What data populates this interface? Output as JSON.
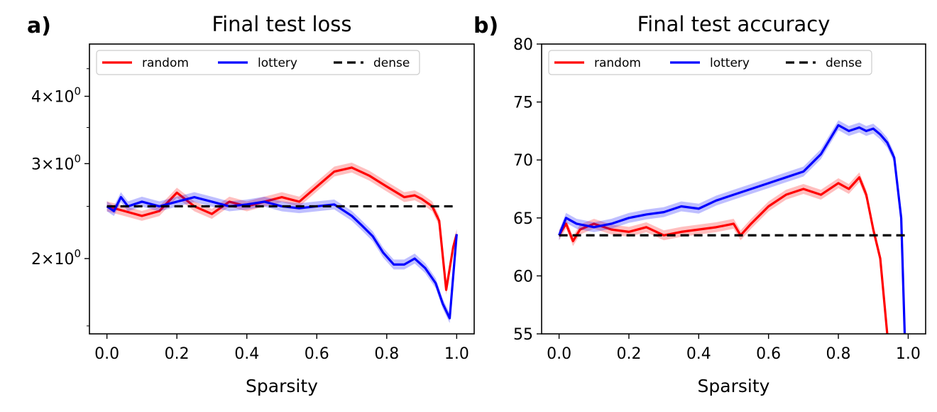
{
  "colors": {
    "random": "#ff0000",
    "lottery": "#0000ff",
    "dense": "#000000"
  },
  "chart_data": [
    {
      "panel_label": "a)",
      "type": "line",
      "title": "Final test loss",
      "xlabel": "Sparsity",
      "ylabel": "",
      "yscale": "log",
      "xlim": [
        -0.05,
        1.05
      ],
      "ylim": [
        1.45,
        5.0
      ],
      "xticks": [
        "0.0",
        "0.2",
        "0.4",
        "0.6",
        "0.8",
        "1.0"
      ],
      "yticks": [
        {
          "value": 2,
          "base": "2",
          "sup": "0"
        },
        {
          "value": 3,
          "base": "3",
          "sup": "0"
        },
        {
          "value": 4,
          "base": "4",
          "sup": "0"
        }
      ],
      "legend": {
        "position": "top-left",
        "ncol": 3,
        "entries": [
          "random",
          "lottery",
          "dense"
        ]
      },
      "series": [
        {
          "name": "random",
          "color_key": "random",
          "shaded": true,
          "x": [
            0,
            0.05,
            0.1,
            0.15,
            0.2,
            0.25,
            0.3,
            0.35,
            0.4,
            0.45,
            0.5,
            0.55,
            0.6,
            0.65,
            0.7,
            0.75,
            0.8,
            0.85,
            0.88,
            0.9,
            0.93,
            0.95,
            0.97,
            0.99,
            1.0
          ],
          "y": [
            2.5,
            2.45,
            2.4,
            2.45,
            2.65,
            2.5,
            2.42,
            2.55,
            2.5,
            2.55,
            2.6,
            2.55,
            2.72,
            2.9,
            2.95,
            2.85,
            2.72,
            2.6,
            2.62,
            2.58,
            2.5,
            2.35,
            1.75,
            2.1,
            2.22
          ]
        },
        {
          "name": "lottery",
          "color_key": "lottery",
          "shaded": true,
          "x": [
            0,
            0.02,
            0.04,
            0.06,
            0.1,
            0.15,
            0.2,
            0.25,
            0.3,
            0.35,
            0.4,
            0.45,
            0.5,
            0.55,
            0.6,
            0.65,
            0.7,
            0.73,
            0.76,
            0.79,
            0.82,
            0.85,
            0.88,
            0.91,
            0.94,
            0.96,
            0.98,
            1.0
          ],
          "y": [
            2.5,
            2.45,
            2.6,
            2.5,
            2.55,
            2.5,
            2.55,
            2.6,
            2.55,
            2.5,
            2.52,
            2.55,
            2.5,
            2.48,
            2.5,
            2.52,
            2.4,
            2.3,
            2.2,
            2.05,
            1.95,
            1.95,
            2.0,
            1.92,
            1.8,
            1.65,
            1.55,
            2.22
          ]
        },
        {
          "name": "dense",
          "color_key": "dense",
          "dashed": true,
          "x": [
            0,
            1.0
          ],
          "y": [
            2.5,
            2.5
          ]
        }
      ]
    },
    {
      "panel_label": "b)",
      "type": "line",
      "title": "Final test accuracy",
      "xlabel": "Sparsity",
      "ylabel": "",
      "yscale": "linear",
      "xlim": [
        -0.05,
        1.05
      ],
      "ylim": [
        55,
        80
      ],
      "xticks": [
        "0.0",
        "0.2",
        "0.4",
        "0.6",
        "0.8",
        "1.0"
      ],
      "yticks": [
        "55",
        "60",
        "65",
        "70",
        "75",
        "80"
      ],
      "legend": {
        "position": "top-left",
        "ncol": 3,
        "entries": [
          "random",
          "lottery",
          "dense"
        ]
      },
      "series": [
        {
          "name": "random",
          "color_key": "random",
          "shaded": true,
          "x": [
            0,
            0.02,
            0.04,
            0.06,
            0.1,
            0.15,
            0.2,
            0.25,
            0.3,
            0.35,
            0.4,
            0.45,
            0.5,
            0.52,
            0.55,
            0.6,
            0.65,
            0.7,
            0.75,
            0.8,
            0.83,
            0.86,
            0.88,
            0.9,
            0.92,
            0.94
          ],
          "y": [
            63.5,
            64.5,
            63.0,
            64.0,
            64.5,
            64.0,
            63.8,
            64.2,
            63.5,
            63.8,
            64.0,
            64.2,
            64.5,
            63.5,
            64.5,
            66.0,
            67.0,
            67.5,
            67.0,
            68.0,
            67.5,
            68.5,
            67.0,
            64.0,
            61.5,
            55.0
          ]
        },
        {
          "name": "lottery",
          "color_key": "lottery",
          "shaded": true,
          "x": [
            0,
            0.02,
            0.05,
            0.1,
            0.15,
            0.2,
            0.25,
            0.3,
            0.35,
            0.4,
            0.45,
            0.5,
            0.55,
            0.6,
            0.65,
            0.7,
            0.75,
            0.78,
            0.8,
            0.83,
            0.86,
            0.88,
            0.9,
            0.92,
            0.94,
            0.96,
            0.98,
            0.99
          ],
          "y": [
            63.5,
            65.0,
            64.5,
            64.2,
            64.5,
            65.0,
            65.3,
            65.5,
            66.0,
            65.8,
            66.5,
            67.0,
            67.5,
            68.0,
            68.5,
            69.0,
            70.5,
            72.0,
            73.0,
            72.5,
            72.8,
            72.5,
            72.7,
            72.2,
            71.5,
            70.2,
            65.0,
            55.0
          ]
        },
        {
          "name": "dense",
          "color_key": "dense",
          "dashed": true,
          "x": [
            0,
            1.0
          ],
          "y": [
            63.5,
            63.5
          ]
        }
      ]
    }
  ]
}
